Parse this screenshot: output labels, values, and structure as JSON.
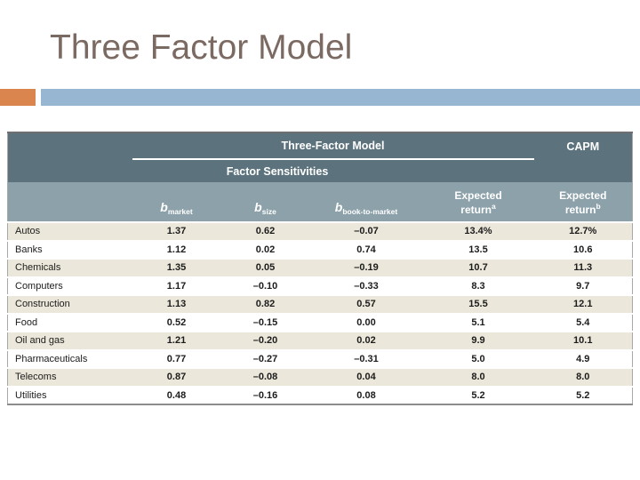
{
  "slide": {
    "title": "Three Factor Model",
    "accent_colors": {
      "orange": "#d9854d",
      "blue": "#97b6d2"
    }
  },
  "colors": {
    "header_dark": "#5c737d",
    "header_light": "#8ca1aa",
    "row_beige": "#ebe7da",
    "title_text": "#7b6a62"
  },
  "table": {
    "group_headers": {
      "three_factor": "Three-Factor Model",
      "capm": "CAPM",
      "factor_sensitivities": "Factor Sensitivities"
    },
    "columns": [
      {
        "label": ""
      },
      {
        "base": "b",
        "sub": "market"
      },
      {
        "base": "b",
        "sub": "size"
      },
      {
        "base": "b",
        "sub": "book-to-market"
      },
      {
        "line1": "Expected",
        "line2": "return",
        "sup": "a"
      },
      {
        "line1": "Expected",
        "line2": "return",
        "sup": "b"
      }
    ],
    "rows": [
      [
        "Autos",
        "1.37",
        "0.62",
        "–0.07",
        "13.4%",
        "12.7%"
      ],
      [
        "Banks",
        "1.12",
        "0.02",
        "0.74",
        "13.5",
        "10.6"
      ],
      [
        "Chemicals",
        "1.35",
        "0.05",
        "–0.19",
        "10.7",
        "11.3"
      ],
      [
        "Computers",
        "1.17",
        "–0.10",
        "–0.33",
        "8.3",
        "9.7"
      ],
      [
        "Construction",
        "1.13",
        "0.82",
        "0.57",
        "15.5",
        "12.1"
      ],
      [
        "Food",
        "0.52",
        "–0.15",
        "0.00",
        "5.1",
        "5.4"
      ],
      [
        "Oil and gas",
        "1.21",
        "–0.20",
        "0.02",
        "9.9",
        "10.1"
      ],
      [
        "Pharmaceuticals",
        "0.77",
        "–0.27",
        "–0.31",
        "5.0",
        "4.9"
      ],
      [
        "Telecoms",
        "0.87",
        "–0.08",
        "0.04",
        "8.0",
        "8.0"
      ],
      [
        "Utilities",
        "0.48",
        "–0.16",
        "0.08",
        "5.2",
        "5.2"
      ]
    ]
  }
}
